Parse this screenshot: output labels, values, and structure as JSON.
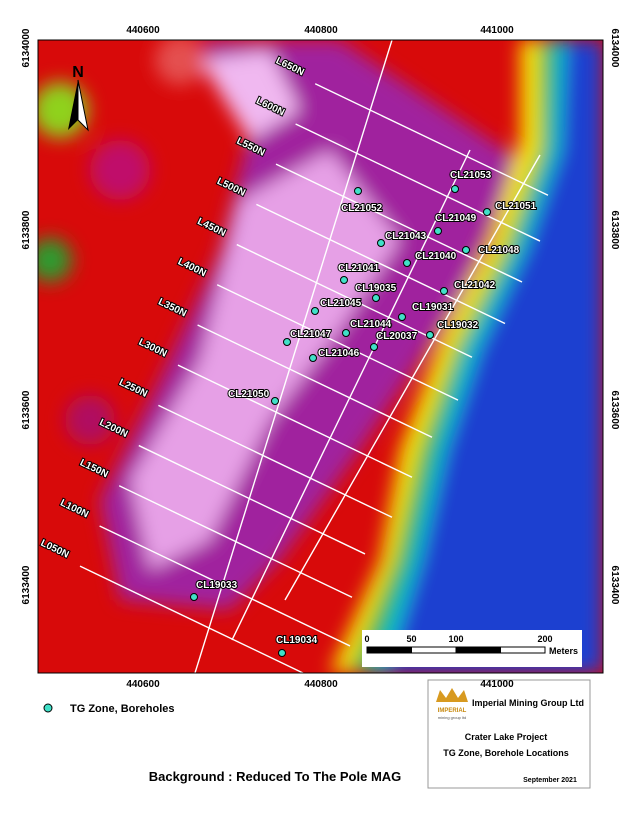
{
  "map": {
    "x_axis_labels": [
      440600,
      440800,
      441000
    ],
    "y_axis_labels": [
      6134000,
      6133800,
      6133600,
      6133400
    ],
    "survey_lines": [
      "L050N",
      "L100N",
      "L150N",
      "L200N",
      "L250N",
      "L300N",
      "L350N",
      "L400N",
      "L450N",
      "L500N",
      "L550N",
      "L600N",
      "L650N"
    ],
    "boreholes": [
      "CL21053",
      "CL21051",
      "CL21052",
      "CL21049",
      "CL21043",
      "CL21048",
      "CL21040",
      "CL21041",
      "CL21042",
      "CL19035",
      "CL21045",
      "CL19031",
      "CL21044",
      "CL21047",
      "CL20037",
      "CL19032",
      "CL21046",
      "CL21050",
      "CL19033",
      "CL19034"
    ],
    "north": "N",
    "scale": {
      "ticks": [
        0,
        50,
        100,
        200
      ],
      "unit": "Meters"
    }
  },
  "legend": {
    "label": "TG Zone, Boreholes"
  },
  "title_block": {
    "company": "Imperial Mining Group Ltd",
    "logo_name": "IMPERIAL",
    "logo_sub": "mining group ltd",
    "project": "Crater Lake Project",
    "subtitle": "TG Zone, Borehole Locations",
    "date": "September 2021"
  },
  "footer": "Background : Reduced To The Pole MAG"
}
